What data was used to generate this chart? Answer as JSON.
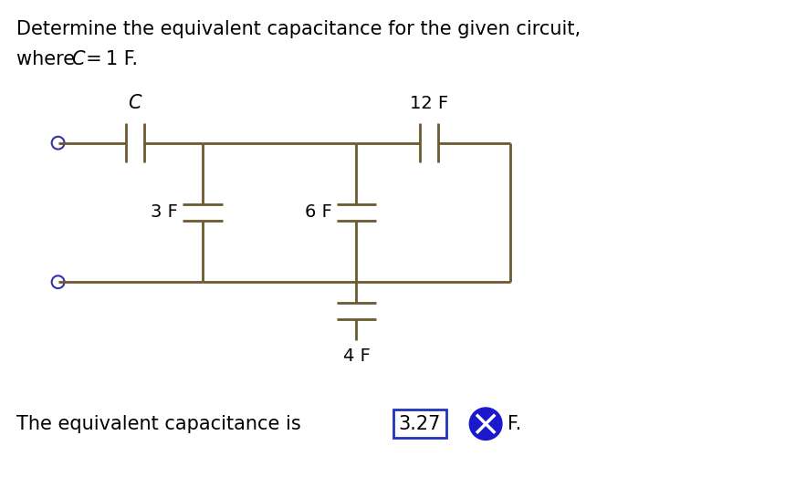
{
  "title_line1": "Determine the equivalent capacitance for the given circuit,",
  "title_line2_pre": "where ",
  "title_line2_C": "C",
  "title_line2_post": " = 1 F.",
  "bg_color": "#ffffff",
  "circuit_color": "#6b5a2e",
  "circle_color": "#3333aa",
  "text_color": "#000000",
  "answer_text": "The equivalent capacitance is",
  "answer_value": "3.27",
  "answer_suffix": "F.",
  "label_C": "C",
  "label_3F": "3 F",
  "label_6F": "6 F",
  "label_12F": "12 F",
  "label_4F": "4 F",
  "title_fontsize": 15,
  "label_fontsize": 14,
  "answer_fontsize": 15
}
